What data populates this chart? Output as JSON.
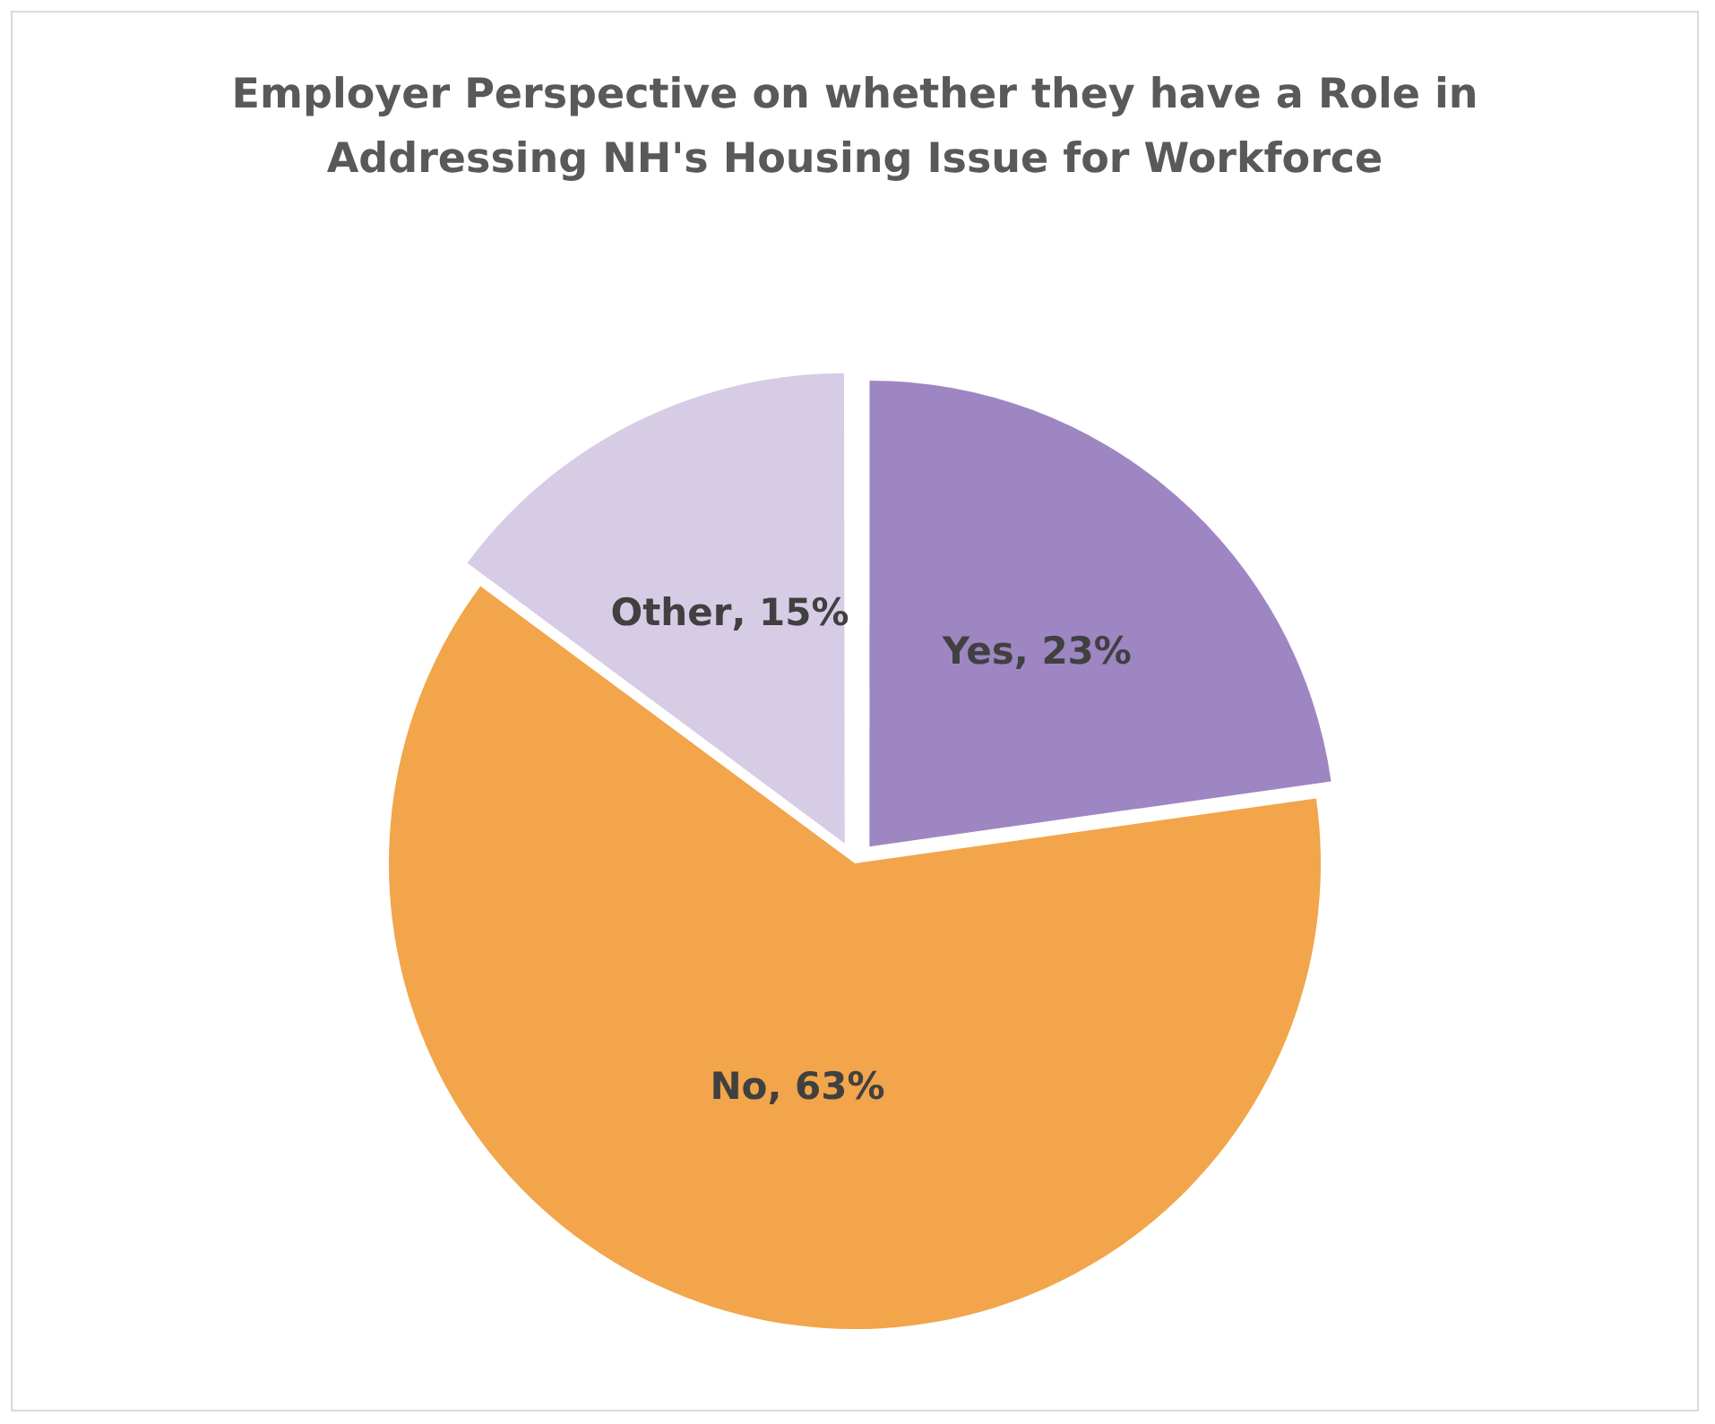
{
  "chart_data": {
    "type": "pie",
    "title": "Employer Perspective on whether they have a Role in Addressing NH's Housing Issue for Workforce",
    "categories": [
      "Yes",
      "No",
      "Other"
    ],
    "values": [
      23,
      63,
      15
    ],
    "colors": [
      "#9e86c2",
      "#f2a54a",
      "#d7cce6"
    ],
    "value_labels": [
      ", 23%",
      ", 63%",
      ", 15%"
    ],
    "legend": false
  }
}
